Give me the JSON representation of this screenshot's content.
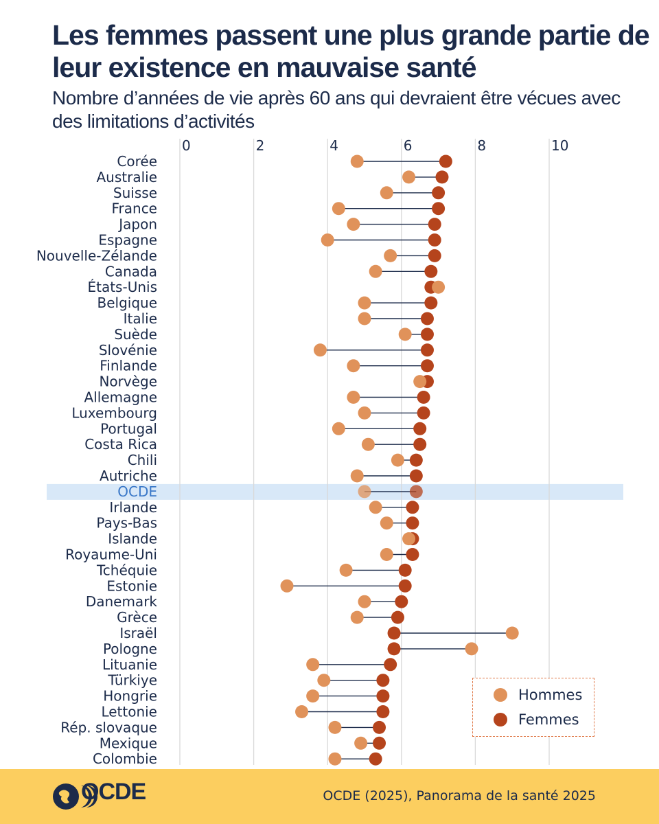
{
  "title": "Les femmes passent une plus grande partie de leur existence en mauvaise santé",
  "subtitle": "Nombre d’années de vie après 60 ans qui devraient être vécues avec des limitations d’activités",
  "source": "OCDE (2025), Panorama de la santé 2025",
  "logo_text": "OCDE",
  "colors": {
    "men": "#e0925a",
    "women": "#b5441c",
    "highlight": "#d8e8f8",
    "line": "#1c2b4a",
    "grid": "#d9d9d9"
  },
  "legend": {
    "men": "Hommes",
    "women": "Femmes"
  },
  "chart_data": {
    "type": "dumbbell",
    "title": "Les femmes passent une plus grande partie de leur existence en mauvaise santé",
    "xlim": [
      0,
      10
    ],
    "xticks": [
      0,
      2,
      4,
      6,
      8,
      10
    ],
    "highlight": "OCDE",
    "categories": [
      "Corée",
      "Australie",
      "Suisse",
      "France",
      "Japon",
      "Espagne",
      "Nouvelle-Zélande",
      "Canada",
      "États-Unis",
      "Belgique",
      "Italie",
      "Suède",
      "Slovénie",
      "Finlande",
      "Norvège",
      "Allemagne",
      "Luxembourg",
      "Portugal",
      "Costa Rica",
      "Chili",
      "Autriche",
      "OCDE",
      "Irlande",
      "Pays-Bas",
      "Islande",
      "Royaume-Uni",
      "Tchéquie",
      "Estonie",
      "Danemark",
      "Grèce",
      "Israël",
      "Pologne",
      "Lituanie",
      "Türkiye",
      "Hongrie",
      "Lettonie",
      "Rép. slovaque",
      "Mexique",
      "Colombie"
    ],
    "series": [
      {
        "name": "Hommes",
        "values": [
          4.8,
          6.2,
          5.6,
          4.3,
          4.7,
          4.0,
          5.7,
          5.3,
          7.0,
          5.0,
          5.0,
          6.1,
          3.8,
          4.7,
          6.5,
          4.7,
          5.0,
          4.3,
          5.1,
          5.9,
          4.8,
          5.0,
          5.3,
          5.6,
          6.2,
          5.6,
          4.5,
          2.9,
          5.0,
          4.8,
          9.0,
          7.9,
          3.6,
          3.9,
          3.6,
          3.3,
          4.2,
          4.9,
          4.2
        ]
      },
      {
        "name": "Femmes",
        "values": [
          7.2,
          7.1,
          7.0,
          7.0,
          6.9,
          6.9,
          6.9,
          6.8,
          6.8,
          6.8,
          6.7,
          6.7,
          6.7,
          6.7,
          6.7,
          6.6,
          6.6,
          6.5,
          6.5,
          6.4,
          6.4,
          6.4,
          6.3,
          6.3,
          6.3,
          6.3,
          6.1,
          6.1,
          6.0,
          5.9,
          5.8,
          5.8,
          5.7,
          5.5,
          5.5,
          5.5,
          5.4,
          5.4,
          5.3
        ]
      }
    ]
  }
}
